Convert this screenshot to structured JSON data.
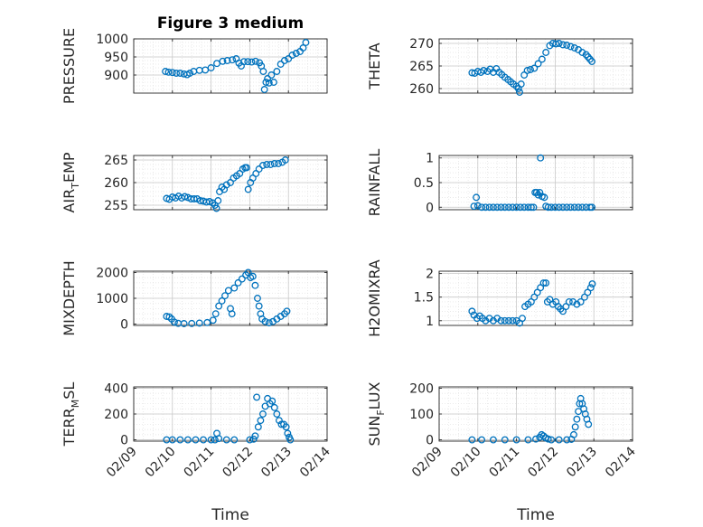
{
  "figure": {
    "title": "Figure 3 medium",
    "xlabel": "Time"
  },
  "colors": {
    "marker": "#0072BD",
    "axis": "#262626",
    "grid": "#c8c8c8",
    "minor": "#e2e2e2"
  },
  "chart_data": [
    {
      "type": "scatter",
      "ylabel": "PRESSURE",
      "ylabel_sub": "",
      "ylabel_tail": "",
      "xlim": [
        "02/09",
        "02/14"
      ],
      "ylim": [
        850,
        1000
      ],
      "yticks": [
        900,
        950,
        1000
      ],
      "xtick_labels": [],
      "show_xlabel": false,
      "title": "Figure 3 medium",
      "points": [
        [
          9.82,
          910
        ],
        [
          9.9,
          908
        ],
        [
          10.0,
          907
        ],
        [
          10.1,
          905
        ],
        [
          10.2,
          905
        ],
        [
          10.3,
          903
        ],
        [
          10.38,
          901
        ],
        [
          10.45,
          905
        ],
        [
          10.55,
          910
        ],
        [
          10.7,
          913
        ],
        [
          10.85,
          914
        ],
        [
          11.0,
          920
        ],
        [
          11.15,
          932
        ],
        [
          11.3,
          938
        ],
        [
          11.42,
          940
        ],
        [
          11.55,
          942
        ],
        [
          11.65,
          945
        ],
        [
          11.72,
          933
        ],
        [
          11.78,
          925
        ],
        [
          11.85,
          937
        ],
        [
          11.95,
          937
        ],
        [
          12.05,
          936
        ],
        [
          12.15,
          938
        ],
        [
          12.25,
          934
        ],
        [
          12.3,
          925
        ],
        [
          12.35,
          910
        ],
        [
          12.38,
          860
        ],
        [
          12.42,
          880
        ],
        [
          12.46,
          890
        ],
        [
          12.5,
          878
        ],
        [
          12.56,
          900
        ],
        [
          12.62,
          880
        ],
        [
          12.7,
          910
        ],
        [
          12.8,
          930
        ],
        [
          12.9,
          940
        ],
        [
          13.0,
          945
        ],
        [
          13.1,
          955
        ],
        [
          13.2,
          960
        ],
        [
          13.3,
          965
        ],
        [
          13.38,
          975
        ],
        [
          13.45,
          990
        ]
      ]
    },
    {
      "type": "scatter",
      "ylabel": "THETA",
      "ylabel_sub": "",
      "ylabel_tail": "",
      "xlim": [
        "02/09",
        "02/14"
      ],
      "ylim": [
        259,
        271
      ],
      "yticks": [
        260,
        265,
        270
      ],
      "xtick_labels": [],
      "show_xlabel": false,
      "points": [
        [
          9.85,
          263.5
        ],
        [
          9.92,
          263.4
        ],
        [
          10.0,
          263.8
        ],
        [
          10.08,
          263.6
        ],
        [
          10.15,
          264
        ],
        [
          10.25,
          263.8
        ],
        [
          10.32,
          264.3
        ],
        [
          10.4,
          263.6
        ],
        [
          10.48,
          264.4
        ],
        [
          10.55,
          263.6
        ],
        [
          10.62,
          263.1
        ],
        [
          10.7,
          262.5
        ],
        [
          10.78,
          262
        ],
        [
          10.85,
          261.5
        ],
        [
          10.92,
          261
        ],
        [
          11.0,
          260.5
        ],
        [
          11.05,
          260
        ],
        [
          11.08,
          259.2
        ],
        [
          11.12,
          261
        ],
        [
          11.2,
          263
        ],
        [
          11.28,
          264
        ],
        [
          11.36,
          264.2
        ],
        [
          11.46,
          264.5
        ],
        [
          11.56,
          265.5
        ],
        [
          11.66,
          266.5
        ],
        [
          11.76,
          268
        ],
        [
          11.86,
          269.5
        ],
        [
          11.94,
          270
        ],
        [
          12.02,
          269.9
        ],
        [
          12.1,
          270
        ],
        [
          12.2,
          269.7
        ],
        [
          12.3,
          269.6
        ],
        [
          12.4,
          269.3
        ],
        [
          12.5,
          269
        ],
        [
          12.6,
          268.6
        ],
        [
          12.7,
          268
        ],
        [
          12.8,
          267.5
        ],
        [
          12.85,
          267
        ],
        [
          12.9,
          266.5
        ],
        [
          12.95,
          266
        ]
      ]
    },
    {
      "type": "scatter",
      "ylabel": "AIR",
      "ylabel_sub": "T",
      "ylabel_tail": "EMP",
      "xlim": [
        "02/09",
        "02/14"
      ],
      "ylim": [
        254,
        266
      ],
      "yticks": [
        255,
        260,
        265
      ],
      "xtick_labels": [],
      "show_xlabel": false,
      "points": [
        [
          9.85,
          256.5
        ],
        [
          9.92,
          256.3
        ],
        [
          10.0,
          256.8
        ],
        [
          10.08,
          256.6
        ],
        [
          10.16,
          257
        ],
        [
          10.24,
          256.6
        ],
        [
          10.32,
          256.9
        ],
        [
          10.4,
          256.7
        ],
        [
          10.48,
          256.4
        ],
        [
          10.56,
          256.4
        ],
        [
          10.64,
          256.4
        ],
        [
          10.72,
          256
        ],
        [
          10.8,
          255.9
        ],
        [
          10.88,
          255.7
        ],
        [
          10.96,
          255.8
        ],
        [
          11.04,
          255.5
        ],
        [
          11.1,
          255
        ],
        [
          11.14,
          254.3
        ],
        [
          11.18,
          256
        ],
        [
          11.22,
          258
        ],
        [
          11.28,
          259
        ],
        [
          11.34,
          258.5
        ],
        [
          11.4,
          259.5
        ],
        [
          11.5,
          260
        ],
        [
          11.58,
          261
        ],
        [
          11.66,
          261.5
        ],
        [
          11.74,
          262
        ],
        [
          11.82,
          263
        ],
        [
          11.88,
          263.3
        ],
        [
          11.92,
          263.3
        ],
        [
          11.96,
          258.5
        ],
        [
          12.02,
          260
        ],
        [
          12.08,
          261
        ],
        [
          12.16,
          262
        ],
        [
          12.24,
          263
        ],
        [
          12.34,
          263.8
        ],
        [
          12.44,
          264
        ],
        [
          12.54,
          264
        ],
        [
          12.64,
          264.2
        ],
        [
          12.74,
          264.2
        ],
        [
          12.84,
          264.5
        ],
        [
          12.92,
          265
        ]
      ]
    },
    {
      "type": "scatter",
      "ylabel": "RAINFALL",
      "ylabel_sub": "",
      "ylabel_tail": "",
      "xlim": [
        "02/09",
        "02/14"
      ],
      "ylim": [
        -0.05,
        1.05
      ],
      "yticks": [
        0,
        0.5,
        1
      ],
      "xtick_labels": [],
      "show_xlabel": false,
      "points": [
        [
          9.9,
          0.02
        ],
        [
          9.96,
          0.2
        ],
        [
          10.0,
          0.03
        ],
        [
          10.1,
          0
        ],
        [
          10.2,
          0
        ],
        [
          10.3,
          0
        ],
        [
          10.4,
          0
        ],
        [
          10.5,
          0
        ],
        [
          10.6,
          0
        ],
        [
          10.7,
          0
        ],
        [
          10.8,
          0
        ],
        [
          10.9,
          0
        ],
        [
          11.0,
          0
        ],
        [
          11.1,
          0
        ],
        [
          11.2,
          0
        ],
        [
          11.3,
          0
        ],
        [
          11.38,
          0
        ],
        [
          11.44,
          0
        ],
        [
          11.48,
          0.3
        ],
        [
          11.52,
          0.3
        ],
        [
          11.56,
          0.25
        ],
        [
          11.6,
          0.3
        ],
        [
          11.62,
          1.0
        ],
        [
          11.66,
          0.22
        ],
        [
          11.72,
          0.2
        ],
        [
          11.76,
          0.02
        ],
        [
          11.82,
          0
        ],
        [
          11.9,
          0
        ],
        [
          12.0,
          0
        ],
        [
          12.1,
          0
        ],
        [
          12.2,
          0
        ],
        [
          12.3,
          0
        ],
        [
          12.4,
          0
        ],
        [
          12.5,
          0
        ],
        [
          12.6,
          0
        ],
        [
          12.7,
          0
        ],
        [
          12.8,
          0
        ],
        [
          12.9,
          0
        ],
        [
          12.95,
          0
        ]
      ]
    },
    {
      "type": "scatter",
      "ylabel": "MIXDEPTH",
      "ylabel_sub": "",
      "ylabel_tail": "",
      "xlim": [
        "02/09",
        "02/14"
      ],
      "ylim": [
        -50,
        2050
      ],
      "yticks": [
        0,
        1000,
        2000
      ],
      "xtick_labels": [],
      "show_xlabel": false,
      "points": [
        [
          9.85,
          300
        ],
        [
          9.92,
          280
        ],
        [
          9.98,
          200
        ],
        [
          10.05,
          80
        ],
        [
          10.15,
          30
        ],
        [
          10.3,
          20
        ],
        [
          10.5,
          25
        ],
        [
          10.7,
          40
        ],
        [
          10.9,
          60
        ],
        [
          11.05,
          150
        ],
        [
          11.12,
          400
        ],
        [
          11.2,
          700
        ],
        [
          11.28,
          900
        ],
        [
          11.36,
          1100
        ],
        [
          11.45,
          1300
        ],
        [
          11.5,
          600
        ],
        [
          11.54,
          400
        ],
        [
          11.6,
          1400
        ],
        [
          11.7,
          1600
        ],
        [
          11.8,
          1750
        ],
        [
          11.9,
          1900
        ],
        [
          11.96,
          2000
        ],
        [
          12.02,
          1800
        ],
        [
          12.08,
          1850
        ],
        [
          12.14,
          1500
        ],
        [
          12.2,
          1000
        ],
        [
          12.24,
          700
        ],
        [
          12.28,
          400
        ],
        [
          12.32,
          200
        ],
        [
          12.4,
          100
        ],
        [
          12.5,
          50
        ],
        [
          12.6,
          100
        ],
        [
          12.7,
          200
        ],
        [
          12.8,
          300
        ],
        [
          12.9,
          400
        ],
        [
          12.96,
          500
        ]
      ]
    },
    {
      "type": "scatter",
      "ylabel": "H2OMIXRA",
      "ylabel_sub": "",
      "ylabel_tail": "",
      "xlim": [
        "02/09",
        "02/14"
      ],
      "ylim": [
        0.9,
        2.05
      ],
      "yticks": [
        1,
        1.5,
        2
      ],
      "xtick_labels": [],
      "show_xlabel": false,
      "points": [
        [
          9.85,
          1.2
        ],
        [
          9.9,
          1.12
        ],
        [
          9.98,
          1.05
        ],
        [
          10.05,
          1.1
        ],
        [
          10.12,
          1.05
        ],
        [
          10.2,
          1.0
        ],
        [
          10.3,
          1.05
        ],
        [
          10.4,
          1.0
        ],
        [
          10.5,
          1.05
        ],
        [
          10.6,
          1.0
        ],
        [
          10.7,
          1.0
        ],
        [
          10.8,
          1.0
        ],
        [
          10.9,
          1.0
        ],
        [
          11.0,
          1.0
        ],
        [
          11.08,
          0.95
        ],
        [
          11.15,
          1.05
        ],
        [
          11.22,
          1.3
        ],
        [
          11.3,
          1.35
        ],
        [
          11.38,
          1.4
        ],
        [
          11.46,
          1.5
        ],
        [
          11.54,
          1.6
        ],
        [
          11.62,
          1.7
        ],
        [
          11.7,
          1.8
        ],
        [
          11.76,
          1.8
        ],
        [
          11.8,
          1.4
        ],
        [
          11.86,
          1.45
        ],
        [
          11.94,
          1.35
        ],
        [
          12.02,
          1.4
        ],
        [
          12.08,
          1.3
        ],
        [
          12.14,
          1.25
        ],
        [
          12.2,
          1.2
        ],
        [
          12.28,
          1.3
        ],
        [
          12.36,
          1.4
        ],
        [
          12.46,
          1.4
        ],
        [
          12.56,
          1.35
        ],
        [
          12.66,
          1.4
        ],
        [
          12.76,
          1.5
        ],
        [
          12.84,
          1.6
        ],
        [
          12.92,
          1.7
        ],
        [
          12.96,
          1.78
        ]
      ]
    },
    {
      "type": "scatter",
      "ylabel": "TERR",
      "ylabel_sub": "M",
      "ylabel_tail": "SL",
      "xlim": [
        "02/09",
        "02/14"
      ],
      "ylim": [
        -10,
        410
      ],
      "yticks": [
        0,
        200,
        400
      ],
      "xtick_labels": [
        "02/09",
        "02/10",
        "02/11",
        "02/12",
        "02/13",
        "02/14"
      ],
      "show_xlabel": true,
      "points": [
        [
          9.85,
          0
        ],
        [
          10.0,
          0
        ],
        [
          10.2,
          0
        ],
        [
          10.4,
          0
        ],
        [
          10.6,
          0
        ],
        [
          10.8,
          0
        ],
        [
          11.0,
          0
        ],
        [
          11.1,
          0
        ],
        [
          11.15,
          50
        ],
        [
          11.2,
          10
        ],
        [
          11.4,
          0
        ],
        [
          11.6,
          0
        ],
        [
          12.0,
          0
        ],
        [
          12.1,
          5
        ],
        [
          12.14,
          30
        ],
        [
          12.18,
          330
        ],
        [
          12.22,
          100
        ],
        [
          12.28,
          150
        ],
        [
          12.34,
          200
        ],
        [
          12.4,
          260
        ],
        [
          12.46,
          320
        ],
        [
          12.52,
          280
        ],
        [
          12.58,
          300
        ],
        [
          12.64,
          250
        ],
        [
          12.7,
          200
        ],
        [
          12.76,
          150
        ],
        [
          12.82,
          120
        ],
        [
          12.88,
          120
        ],
        [
          12.94,
          100
        ],
        [
          12.98,
          50
        ],
        [
          13.02,
          20
        ],
        [
          13.05,
          0
        ]
      ]
    },
    {
      "type": "scatter",
      "ylabel": "SUN",
      "ylabel_sub": "F",
      "ylabel_tail": "LUX",
      "xlim": [
        "02/09",
        "02/14"
      ],
      "ylim": [
        -5,
        205
      ],
      "yticks": [
        0,
        100,
        200
      ],
      "xtick_labels": [
        "02/09",
        "02/10",
        "02/11",
        "02/12",
        "02/13",
        "02/14"
      ],
      "show_xlabel": true,
      "points": [
        [
          9.85,
          0
        ],
        [
          10.1,
          0
        ],
        [
          10.4,
          0
        ],
        [
          10.7,
          0
        ],
        [
          11.0,
          0
        ],
        [
          11.3,
          0
        ],
        [
          11.5,
          3
        ],
        [
          11.6,
          10
        ],
        [
          11.65,
          20
        ],
        [
          11.7,
          15
        ],
        [
          11.75,
          8
        ],
        [
          11.82,
          3
        ],
        [
          11.9,
          0
        ],
        [
          12.1,
          0
        ],
        [
          12.3,
          0
        ],
        [
          12.42,
          2
        ],
        [
          12.48,
          20
        ],
        [
          12.52,
          50
        ],
        [
          12.56,
          80
        ],
        [
          12.6,
          110
        ],
        [
          12.63,
          140
        ],
        [
          12.66,
          160
        ],
        [
          12.7,
          140
        ],
        [
          12.74,
          120
        ],
        [
          12.78,
          100
        ],
        [
          12.82,
          80
        ],
        [
          12.86,
          60
        ]
      ]
    }
  ]
}
